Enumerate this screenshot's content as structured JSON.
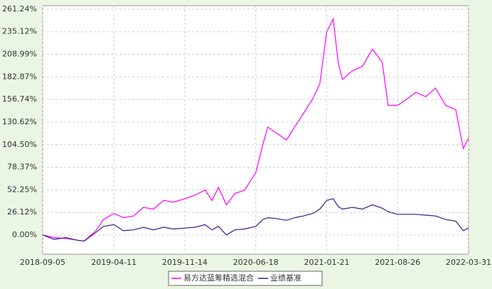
{
  "chart_data": {
    "type": "line",
    "x": [
      "2018-09-05",
      "2018-10-10",
      "2018-11-15",
      "2018-12-20",
      "2019-01-10",
      "2019-02-15",
      "2019-03-10",
      "2019-04-11",
      "2019-05-10",
      "2019-06-10",
      "2019-07-10",
      "2019-08-10",
      "2019-09-10",
      "2019-10-10",
      "2019-11-14",
      "2019-12-15",
      "2020-01-15",
      "2020-02-05",
      "2020-02-25",
      "2020-03-20",
      "2020-04-15",
      "2020-05-15",
      "2020-06-18",
      "2020-07-10",
      "2020-07-25",
      "2020-08-20",
      "2020-09-20",
      "2020-10-15",
      "2020-11-10",
      "2020-12-10",
      "2020-12-31",
      "2021-01-21",
      "2021-02-10",
      "2021-02-25",
      "2021-03-10",
      "2021-04-10",
      "2021-05-10",
      "2021-06-10",
      "2021-07-10",
      "2021-07-28",
      "2021-08-26",
      "2021-09-15",
      "2021-10-20",
      "2021-11-20",
      "2021-12-20",
      "2022-01-20",
      "2022-02-20",
      "2022-03-15",
      "2022-03-31"
    ],
    "series": [
      {
        "name": "易方达蓝筹精选混合",
        "color": "#ff00ff",
        "values": [
          0,
          -3,
          -4,
          -6,
          -7,
          5,
          18,
          25,
          20,
          22,
          32,
          30,
          40,
          38,
          42,
          46,
          52,
          40,
          55,
          35,
          48,
          52,
          72,
          105,
          125,
          118,
          110,
          125,
          140,
          158,
          175,
          235,
          250,
          200,
          180,
          190,
          195,
          215,
          200,
          150,
          150,
          155,
          165,
          160,
          170,
          150,
          145,
          100,
          112
        ]
      },
      {
        "name": "业绩基准",
        "color": "#3a1a8c",
        "values": [
          0,
          -5,
          -3,
          -6,
          -7,
          3,
          10,
          12,
          5,
          6,
          9,
          6,
          9,
          7,
          8,
          9,
          12,
          6,
          10,
          0,
          6,
          7,
          10,
          18,
          20,
          19,
          17,
          20,
          22,
          25,
          30,
          40,
          42,
          33,
          30,
          32,
          30,
          35,
          31,
          27,
          24,
          24,
          24,
          23,
          22,
          18,
          16,
          5,
          8
        ]
      }
    ],
    "xlim": [
      "2018-09-05",
      "2022-03-31"
    ],
    "xticks": [
      "2018-09-05",
      "2019-04-11",
      "2019-11-14",
      "2020-06-18",
      "2021-01-21",
      "2021-08-26",
      "2022-03-31"
    ],
    "ylim": [
      -22.2,
      265.3
    ],
    "yticks": [
      {
        "value": 0,
        "label": "0.00%"
      },
      {
        "value": 26.12,
        "label": "26.12%"
      },
      {
        "value": 52.25,
        "label": "52.25%"
      },
      {
        "value": 78.37,
        "label": "78.37%"
      },
      {
        "value": 104.5,
        "label": "104.50%"
      },
      {
        "value": 130.62,
        "label": "130.62%"
      },
      {
        "value": 156.74,
        "label": "156.74%"
      },
      {
        "value": 182.87,
        "label": "182.87%"
      },
      {
        "value": 208.99,
        "label": "208.99%"
      },
      {
        "value": 235.12,
        "label": "235.12%"
      },
      {
        "value": 261.24,
        "label": "261.24%"
      }
    ],
    "grid": true
  }
}
